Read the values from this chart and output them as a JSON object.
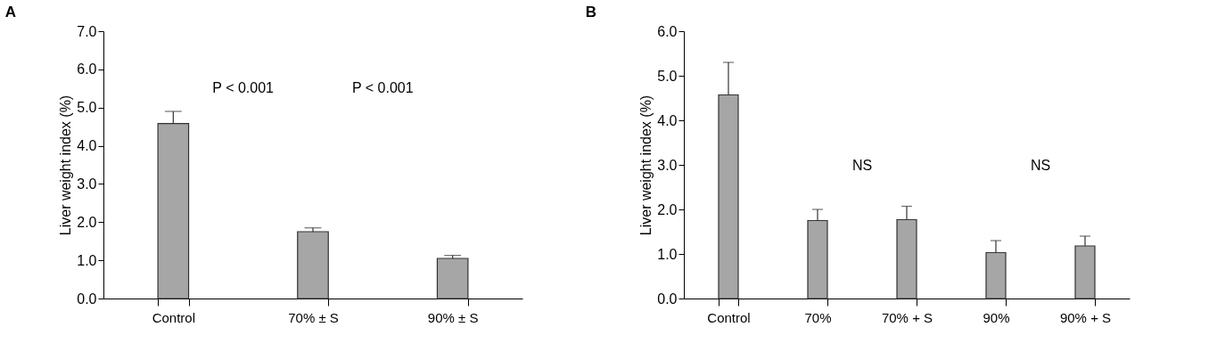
{
  "chart_data": [
    {
      "type": "bar",
      "title": "A",
      "ylabel": "Liver weight index (%)",
      "categories": [
        "Control",
        "70% ± S",
        "90% ± S"
      ],
      "series": [
        {
          "color": "#a6a6a6",
          "values": [
            4.58,
            1.75,
            1.05
          ],
          "errors": [
            [
              4.58,
              4.9
            ],
            [
              1.75,
              1.85
            ],
            [
              1.05,
              1.13
            ]
          ]
        }
      ],
      "ylim": [
        0,
        7
      ],
      "yticks": [
        {
          "value": 0,
          "label": "0.0"
        },
        {
          "value": 1,
          "label": "1.0"
        },
        {
          "value": 2,
          "label": "2.0"
        },
        {
          "value": 3,
          "label": "3.0"
        },
        {
          "value": 4,
          "label": "4.0"
        },
        {
          "value": 5,
          "label": "5.0"
        },
        {
          "value": 6,
          "label": "6.0"
        },
        {
          "value": 7,
          "label": "7.0"
        }
      ],
      "grid": false,
      "annotations": [
        "P < 0.001",
        "P < 0.001"
      ]
    },
    {
      "type": "bar",
      "title": "B",
      "ylabel": "Liver weight index (%)",
      "categories": [
        "Control",
        "70%",
        "70% + S",
        "90%",
        "90% + S"
      ],
      "series": [
        {
          "color": "#a6a6a6",
          "values": [
            4.57,
            1.75,
            1.77,
            1.03,
            1.18
          ],
          "errors": [
            [
              4.57,
              5.3
            ],
            [
              1.75,
              2.0
            ],
            [
              1.77,
              2.07
            ],
            [
              1.03,
              1.3
            ],
            [
              1.18,
              1.4
            ]
          ]
        }
      ],
      "ylim": [
        0,
        6
      ],
      "yticks": [
        {
          "value": 0,
          "label": "0.0"
        },
        {
          "value": 1,
          "label": "1.0"
        },
        {
          "value": 2,
          "label": "2.0"
        },
        {
          "value": 3,
          "label": "3.0"
        },
        {
          "value": 4,
          "label": "4.0"
        },
        {
          "value": 5,
          "label": "5.0"
        },
        {
          "value": 6,
          "label": "6.0"
        }
      ],
      "grid": false,
      "annotations": [
        "NS",
        "NS"
      ]
    }
  ]
}
